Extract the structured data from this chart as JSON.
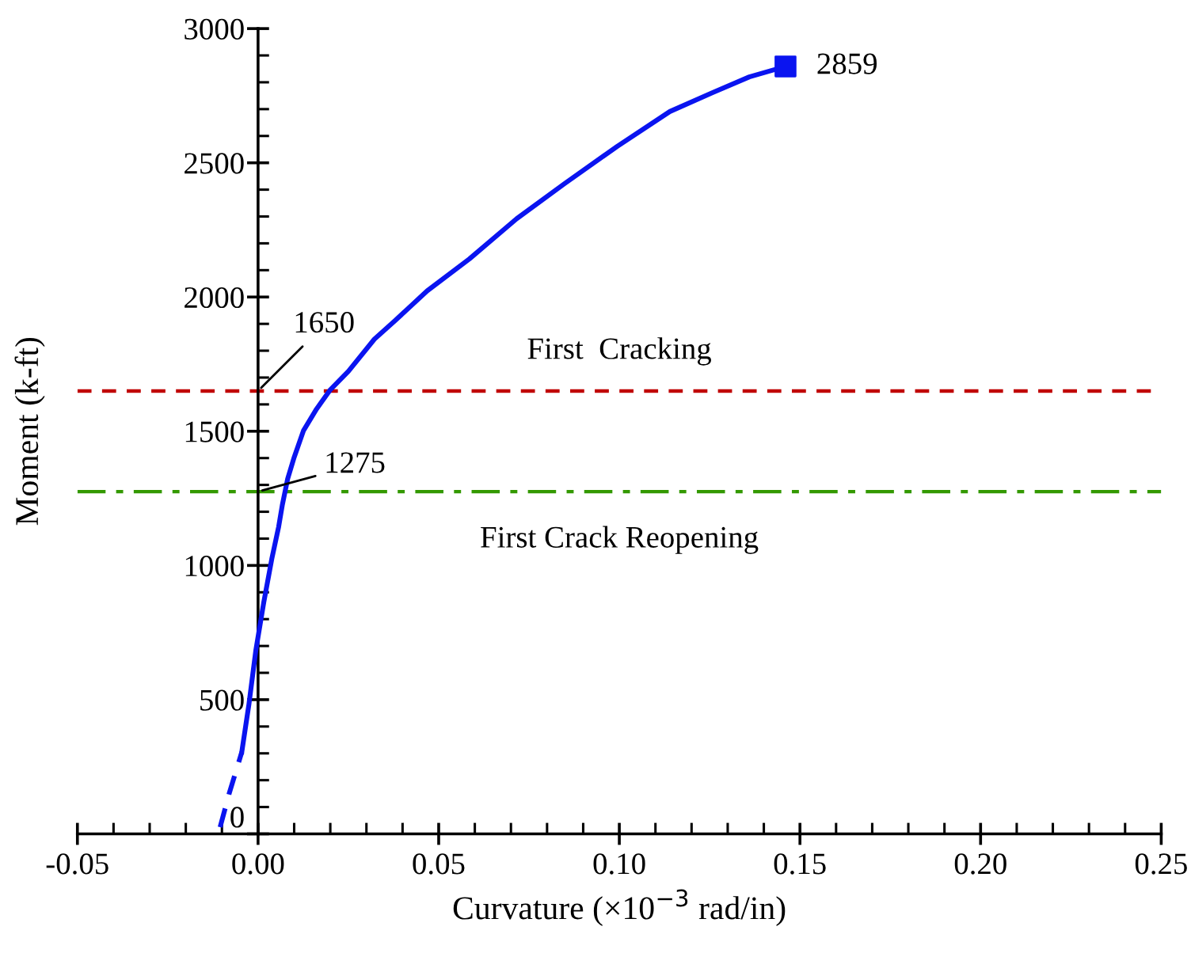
{
  "chart_data": {
    "type": "line",
    "xlabel": "Curvature (×10$^{−3}$ rad/in)",
    "ylabel": "Moment (k-ft)",
    "xlim": [
      -0.05,
      0.25
    ],
    "xticks": [
      {
        "value": -0.05,
        "label": "-0.05"
      },
      {
        "value": 0,
        "label": "0.00"
      },
      {
        "value": 0.05,
        "label": "0.05"
      },
      {
        "value": 0.1,
        "label": "0.10"
      },
      {
        "value": 0.15,
        "label": "0.15"
      },
      {
        "value": 0.2,
        "label": "0.20"
      },
      {
        "value": 0.25,
        "label": "0.25"
      }
    ],
    "ylim": [
      0,
      3000
    ],
    "yticks": [
      0,
      500,
      1000,
      1500,
      2000,
      2500,
      3000
    ],
    "grid": false,
    "legend": false,
    "series": [
      {
        "color": "#0a14f0",
        "line_style": "dashed",
        "marker": "none",
        "x": [
          -0.0105,
          -0.008,
          -0.0045
        ],
        "values": [
          25,
          150,
          305
        ]
      },
      {
        "color": "#0a14f0",
        "line_style": "solid",
        "marker": "none",
        "x": [
          -0.0045,
          -0.0025,
          -0.0006,
          0.0016,
          0.0038,
          0.0057,
          0.0067,
          0.0082,
          0.01,
          0.0126,
          0.0162,
          0.0199,
          0.025,
          0.0322,
          0.038,
          0.0468,
          0.0585,
          0.0716,
          0.0848,
          0.0994,
          0.114,
          0.1257,
          0.136,
          0.146
        ],
        "values": [
          305,
          485,
          685,
          864,
          1024,
          1144,
          1224,
          1323,
          1403,
          1503,
          1583,
          1653,
          1723,
          1843,
          1913,
          2023,
          2142,
          2292,
          2422,
          2561,
          2691,
          2761,
          2820,
          2859
        ]
      },
      {
        "type": "scatter",
        "color": "#0a14f0",
        "marker": "square",
        "x": [
          0.146
        ],
        "values": [
          2859
        ],
        "value_labels": [
          "2859"
        ]
      }
    ],
    "ref_lines": [
      {
        "axis": "y",
        "value": 1650,
        "label": "First  Cracking",
        "color": "#c00000",
        "line_style": "dashed"
      },
      {
        "axis": "y",
        "value": 1275,
        "label": "First Crack Reopening",
        "color": "#339900",
        "line_style": "dashdot"
      }
    ],
    "annotations": [
      {
        "text": "1650",
        "x": 0,
        "y": 1650
      },
      {
        "text": "1275",
        "x": 0,
        "y": 1275
      }
    ]
  }
}
